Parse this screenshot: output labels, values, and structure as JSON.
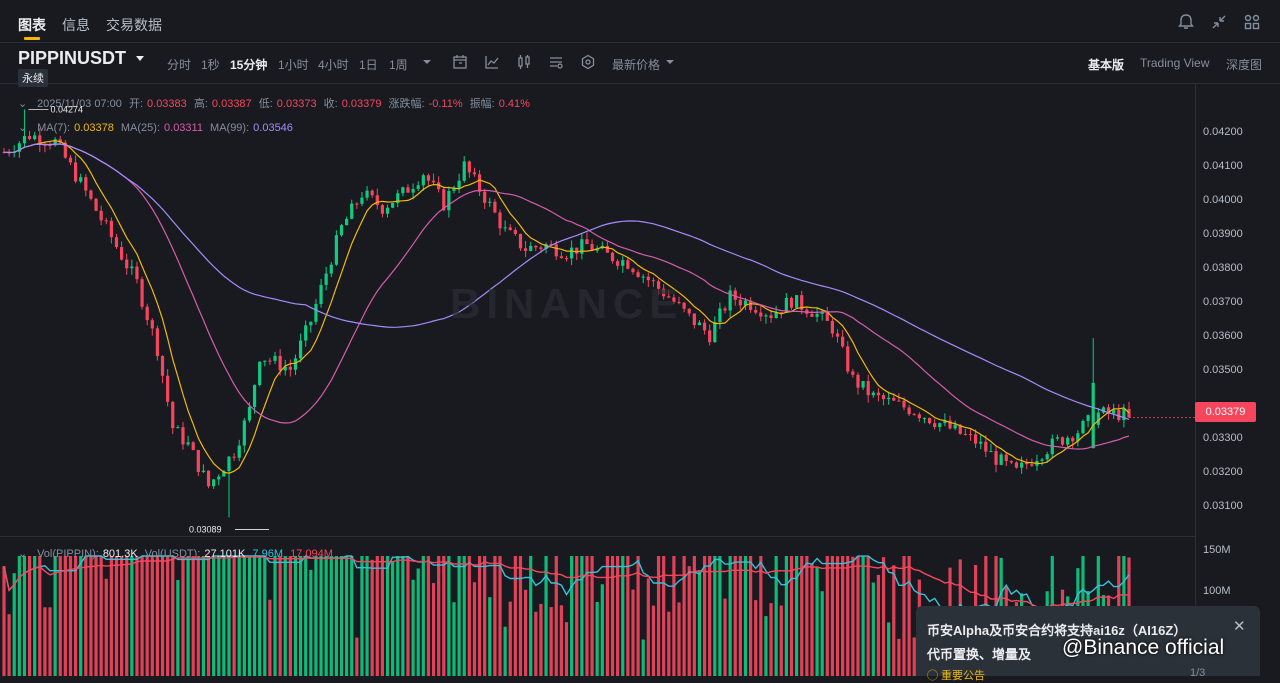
{
  "tabs": [
    {
      "label": "图表",
      "active": true
    },
    {
      "label": "信息",
      "active": false
    },
    {
      "label": "交易数据",
      "active": false
    }
  ],
  "top_icons": [
    "bell-icon",
    "collapse-icon",
    "grid-icon"
  ],
  "symbol": {
    "name": "PIPPINUSDT",
    "badge": "永续"
  },
  "intervals": [
    {
      "label": "分时",
      "active": false
    },
    {
      "label": "1秒",
      "active": false
    },
    {
      "label": "15分钟",
      "active": true
    },
    {
      "label": "1小时",
      "active": false
    },
    {
      "label": "4小时",
      "active": false
    },
    {
      "label": "1日",
      "active": false
    },
    {
      "label": "1周",
      "active": false
    }
  ],
  "price_type": "最新价格",
  "view_options": [
    {
      "label": "基本版",
      "active": true
    },
    {
      "label": "Trading View",
      "active": false
    },
    {
      "label": "深度图",
      "active": false
    }
  ],
  "ohlc": {
    "time": "2025/11/03 07:00",
    "open_label": "开:",
    "open": "0.03383",
    "high_label": "高:",
    "high": "0.03387",
    "low_label": "低:",
    "low": "0.03373",
    "close_label": "收:",
    "close": "0.03379",
    "change_label": "涨跌幅:",
    "change": "-0.11%",
    "amp_label": "振幅:",
    "amp": "0.41%"
  },
  "ma": {
    "ma7_label": "MA(7):",
    "ma7": "0.03378",
    "ma25_label": "MA(25):",
    "ma25": "0.03311",
    "ma99_label": "MA(99):",
    "ma99": "0.03546"
  },
  "volume_legend": {
    "vol_label": "Vol(PIPPIN):",
    "vol": "801.3K",
    "volusdt_label": "Vol(USDT):",
    "volusdt": "27.101K",
    "ma1": "7.96M",
    "ma2": "17.094M"
  },
  "price_axis": [
    "0.04200",
    "0.04100",
    "0.04000",
    "0.03900",
    "0.03800",
    "0.03700",
    "0.03600",
    "0.03500",
    "0.03300",
    "0.03200",
    "0.03100"
  ],
  "volume_axis": [
    "150M",
    "100M"
  ],
  "current_price": "0.03379",
  "max_label": "0.04274",
  "min_label": "0.03089",
  "watermark": "BINANCE",
  "notification": {
    "title": "币安Alpha及币安合约将支持ai16z（AI16Z）",
    "title2": "代币置换、增量及",
    "tag": "◯ 重要公告",
    "page": "1/3",
    "overlay": "@Binance official"
  },
  "colors": {
    "up": "#0ecb81",
    "down": "#f6465d",
    "ma7": "#f0b90b",
    "ma25": "#d55dab",
    "ma99": "#a78bfa",
    "vol_ma": "#39c0d8"
  },
  "chart_data": {
    "type": "candlestick",
    "interval": "15分钟",
    "symbol": "PIPPINUSDT",
    "y_range": [
      0.0307,
      0.0429
    ],
    "close_path_points": [
      [
        0,
        0.0415
      ],
      [
        5,
        0.042
      ],
      [
        10,
        0.0418
      ],
      [
        15,
        0.0406
      ],
      [
        20,
        0.0393
      ],
      [
        26,
        0.0377
      ],
      [
        30,
        0.0358
      ],
      [
        33,
        0.0335
      ],
      [
        36,
        0.033
      ],
      [
        40,
        0.0318
      ],
      [
        45,
        0.0328
      ],
      [
        48,
        0.034
      ],
      [
        50,
        0.0356
      ],
      [
        56,
        0.0352
      ],
      [
        60,
        0.0366
      ],
      [
        63,
        0.038
      ],
      [
        66,
        0.0393
      ],
      [
        70,
        0.0403
      ],
      [
        74,
        0.0399
      ],
      [
        78,
        0.0403
      ],
      [
        82,
        0.0409
      ],
      [
        86,
        0.04
      ],
      [
        90,
        0.0411
      ],
      [
        94,
        0.0402
      ],
      [
        98,
        0.0392
      ],
      [
        102,
        0.0387
      ],
      [
        106,
        0.0388
      ],
      [
        110,
        0.0386
      ],
      [
        114,
        0.0388
      ],
      [
        118,
        0.0385
      ],
      [
        122,
        0.0383
      ],
      [
        126,
        0.0378
      ],
      [
        130,
        0.0373
      ],
      [
        134,
        0.0367
      ],
      [
        138,
        0.0362
      ],
      [
        142,
        0.0373
      ],
      [
        146,
        0.0371
      ],
      [
        150,
        0.0368
      ],
      [
        154,
        0.0372
      ],
      [
        158,
        0.0369
      ],
      [
        162,
        0.0364
      ],
      [
        166,
        0.0349
      ],
      [
        170,
        0.0344
      ],
      [
        174,
        0.0342
      ],
      [
        178,
        0.034
      ],
      [
        182,
        0.0337
      ],
      [
        186,
        0.0334
      ],
      [
        190,
        0.0331
      ],
      [
        194,
        0.0326
      ],
      [
        198,
        0.0322
      ],
      [
        202,
        0.0327
      ],
      [
        206,
        0.0331
      ],
      [
        210,
        0.0334
      ],
      [
        214,
        0.0339
      ],
      [
        218,
        0.0339
      ],
      [
        220,
        0.0338
      ]
    ],
    "high": 0.04274,
    "low": 0.03089,
    "last": 0.03379
  }
}
